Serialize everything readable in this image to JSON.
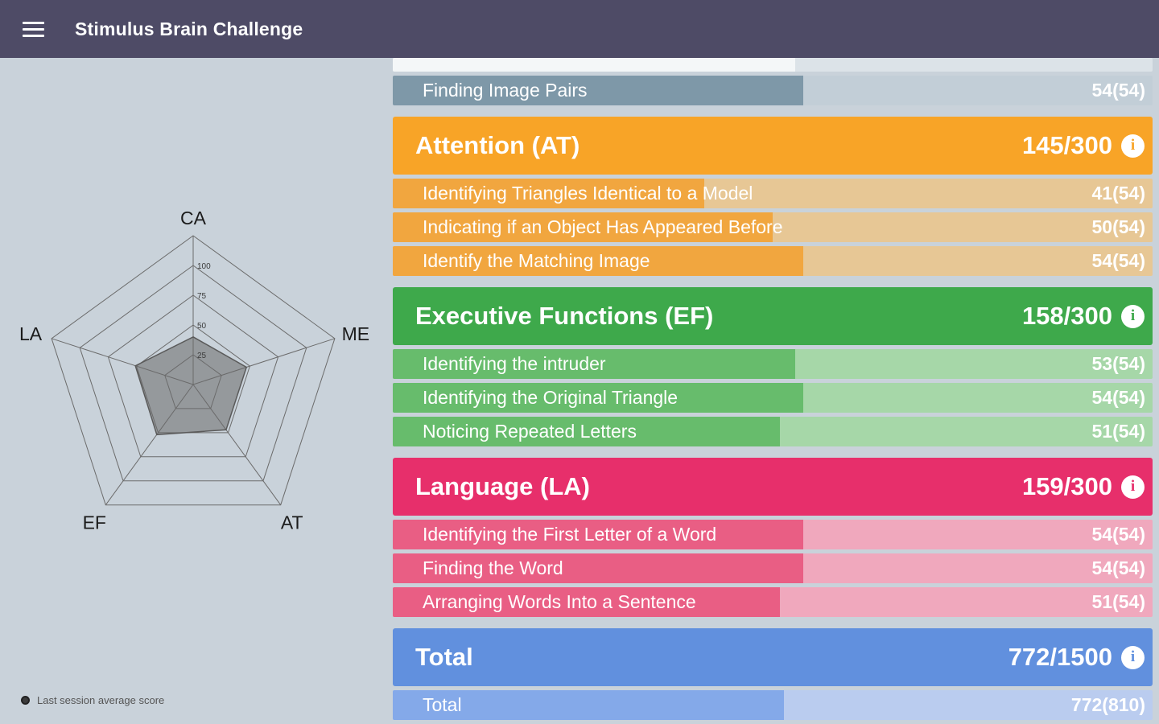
{
  "app_bar": {
    "title": "Stimulus Brain Challenge"
  },
  "radar": {
    "legend": "Last session average score",
    "axes": [
      "CA",
      "ME",
      "AT",
      "EF",
      "LA"
    ],
    "scale_max": 125,
    "ticks": [
      100,
      75,
      50,
      25
    ],
    "values": [
      40,
      47,
      47,
      52,
      51
    ]
  },
  "colors": {
    "partial": {
      "header": "#E9EEF1",
      "fill": "#F4F7F8",
      "track": "#DCE3E8",
      "text": "#7E98A8"
    },
    "memory": {
      "header": "#7E98A8",
      "fill": "#7E98A8",
      "track": "#C2CED7",
      "text": "#7E98A8"
    },
    "attention": {
      "header": "#F8A427",
      "fill": "#F1A63F",
      "track": "#E7C795",
      "text": "#F8A427"
    },
    "executive": {
      "header": "#3EA94B",
      "fill": "#67BC6C",
      "track": "#A6D7A8",
      "text": "#3EA94B"
    },
    "language": {
      "header": "#E72F6B",
      "fill": "#E95E84",
      "track": "#F0A8BD",
      "text": "#E72F6B"
    },
    "total": {
      "header": "#6190DE",
      "fill": "#84A9E9",
      "track": "#BACCEF",
      "text": "#6190DE"
    }
  },
  "panel": {
    "sections": [
      {
        "key": "memory-partial",
        "color": "partial",
        "rows": [
          {
            "label": "",
            "score": "",
            "percent": 53,
            "partial": true
          }
        ]
      },
      {
        "key": "memory",
        "color": "memory",
        "rows": [
          {
            "label": "Finding Image Pairs",
            "score": "54(54)",
            "percent": 54
          }
        ]
      },
      {
        "key": "attention",
        "color": "attention",
        "header": {
          "label": "Attention (AT)",
          "score": "145/300"
        },
        "rows": [
          {
            "label": "Identifying Triangles Identical to a Model",
            "score": "41(54)",
            "percent": 41
          },
          {
            "label": "Indicating if an Object Has Appeared Before",
            "score": "50(54)",
            "percent": 50
          },
          {
            "label": "Identify the Matching Image",
            "score": "54(54)",
            "percent": 54
          }
        ]
      },
      {
        "key": "executive",
        "color": "executive",
        "header": {
          "label": "Executive Functions (EF)",
          "score": "158/300"
        },
        "rows": [
          {
            "label": "Identifying the intruder",
            "score": "53(54)",
            "percent": 53
          },
          {
            "label": "Identifying the Original Triangle",
            "score": "54(54)",
            "percent": 54
          },
          {
            "label": "Noticing Repeated Letters",
            "score": "51(54)",
            "percent": 51
          }
        ]
      },
      {
        "key": "language",
        "color": "language",
        "header": {
          "label": "Language (LA)",
          "score": "159/300"
        },
        "rows": [
          {
            "label": "Identifying the First Letter of a Word",
            "score": "54(54)",
            "percent": 54
          },
          {
            "label": "Finding the Word",
            "score": "54(54)",
            "percent": 54
          },
          {
            "label": "Arranging Words Into a Sentence",
            "score": "51(54)",
            "percent": 51
          }
        ]
      },
      {
        "key": "total",
        "color": "total",
        "header": {
          "label": "Total",
          "score": "772/1500"
        },
        "rows": [
          {
            "label": "Total",
            "score": "772(810)",
            "percent": 51.5
          }
        ]
      }
    ]
  }
}
